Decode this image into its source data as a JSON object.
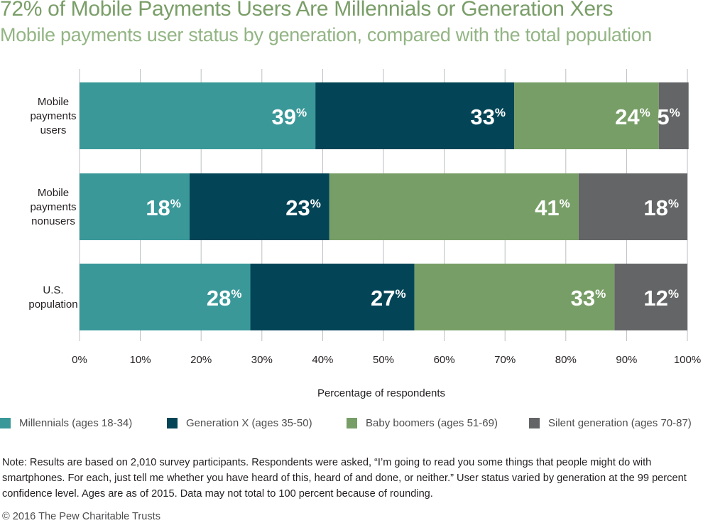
{
  "header": {
    "title": "72% of Mobile Payments Users Are Millennials or Generation Xers",
    "subtitle": "Mobile payments user status by generation, compared with the total population"
  },
  "chart_data": {
    "type": "bar",
    "orientation": "horizontal",
    "stacked": true,
    "categories": [
      [
        "Mobile",
        "payments",
        "users"
      ],
      [
        "Mobile",
        "payments",
        "nonusers"
      ],
      [
        "U.S.",
        "population"
      ]
    ],
    "series": [
      {
        "name": "Millennials (ages 18-34)",
        "color": "#3a9899",
        "values": [
          39,
          18,
          28
        ],
        "plot_values": [
          38.8,
          18.1,
          28.1
        ]
      },
      {
        "name": "Generation X (ages 35-50)",
        "color": "#034557",
        "values": [
          33,
          23,
          27
        ],
        "plot_values": [
          32.7,
          23.0,
          27.0
        ]
      },
      {
        "name": "Baby boomers (ages 51-69)",
        "color": "#779e66",
        "values": [
          24,
          41,
          33
        ],
        "plot_values": [
          23.8,
          41.0,
          32.9
        ]
      },
      {
        "name": "Silent generation (ages 70-87)",
        "color": "#646566",
        "values": [
          5,
          18,
          12
        ],
        "plot_values": [
          4.9,
          17.9,
          12.0
        ]
      }
    ],
    "value_suffix": "%",
    "xlabel": "Percentage of respondents",
    "xlim": [
      0,
      100
    ],
    "xticks": [
      "0%",
      "10%",
      "20%",
      "30%",
      "40%",
      "50%",
      "60%",
      "70%",
      "80%",
      "90%",
      "100%"
    ],
    "grid": true,
    "legend_position": "bottom"
  },
  "note": "Note: Results are based on 2,010 survey participants. Respondents were asked, “I’m going to read you some things that people might do with smartphones. For each, just tell me whether you have heard of this, heard of and done, or neither.” User status varied by generation at the 99 percent confidence level. Ages are as of 2015. Data may not total to 100 percent because of rounding.",
  "copyright": "© 2016 The Pew Charitable Trusts"
}
